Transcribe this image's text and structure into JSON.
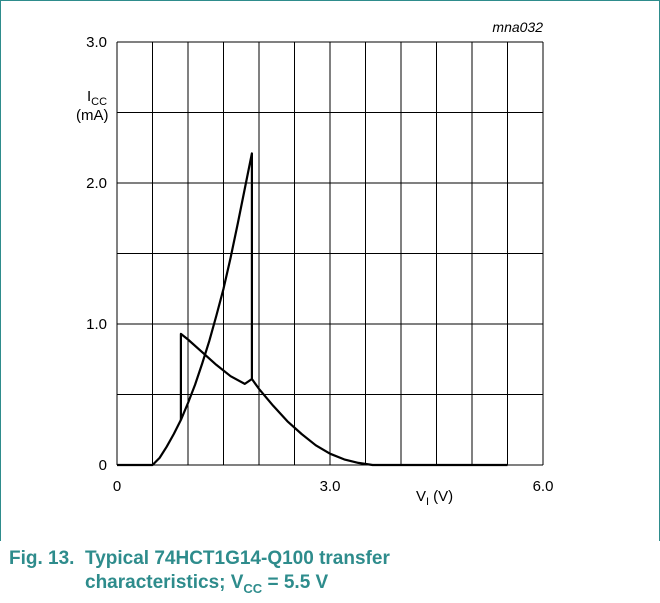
{
  "chart_data": {
    "type": "line",
    "figure_id": "mna032",
    "ylabel_main": "I",
    "ylabel_sub": "CC",
    "ylabel_unit": "(mA)",
    "xlabel_main": "V",
    "xlabel_sub": "I",
    "xlabel_unit": "(V)",
    "xlim": [
      0,
      6.0
    ],
    "ylim": [
      0,
      3.0
    ],
    "x_grid_step": 0.5,
    "y_grid_step": 0.5,
    "x_tick_labels": [
      {
        "value": 0,
        "label": "0"
      },
      {
        "value": 3.0,
        "label": "3.0"
      },
      {
        "value": 6.0,
        "label": "6.0"
      }
    ],
    "y_tick_labels": [
      {
        "value": 0,
        "label": "0"
      },
      {
        "value": 1.0,
        "label": "1.0"
      },
      {
        "value": 2.0,
        "label": "2.0"
      },
      {
        "value": 3.0,
        "label": "3.0"
      }
    ],
    "grid": true,
    "series": [
      {
        "points": [
          [
            0,
            0
          ],
          [
            0.5,
            0
          ],
          [
            0.6,
            0.05
          ],
          [
            0.7,
            0.13
          ],
          [
            0.8,
            0.22
          ],
          [
            0.9,
            0.32
          ],
          [
            1.0,
            0.44
          ],
          [
            1.1,
            0.57
          ],
          [
            1.2,
            0.72
          ],
          [
            1.3,
            0.88
          ],
          [
            1.4,
            1.06
          ],
          [
            1.5,
            1.25
          ],
          [
            1.6,
            1.47
          ],
          [
            1.7,
            1.71
          ],
          [
            1.8,
            1.96
          ],
          [
            1.9,
            2.21
          ],
          [
            1.9,
            0.61
          ],
          [
            2.0,
            0.54
          ],
          [
            2.2,
            0.42
          ],
          [
            2.4,
            0.31
          ],
          [
            2.6,
            0.22
          ],
          [
            2.8,
            0.14
          ],
          [
            3.0,
            0.08
          ],
          [
            3.2,
            0.04
          ],
          [
            3.4,
            0.015
          ],
          [
            3.6,
            0
          ],
          [
            5.5,
            0
          ]
        ]
      },
      {
        "points": [
          [
            0.9,
            0.32
          ],
          [
            0.9,
            0.93
          ],
          [
            1.0,
            0.89
          ],
          [
            1.2,
            0.8
          ],
          [
            1.4,
            0.71
          ],
          [
            1.6,
            0.63
          ],
          [
            1.8,
            0.575
          ],
          [
            1.9,
            0.61
          ]
        ]
      }
    ]
  },
  "caption": {
    "number": "Fig. 13.",
    "line1": "Typical 74HCT1G14-Q100 transfer",
    "line2_text": "characteristics; V",
    "line2_sub": "CC",
    "line2_end": " = 5.5 V"
  }
}
